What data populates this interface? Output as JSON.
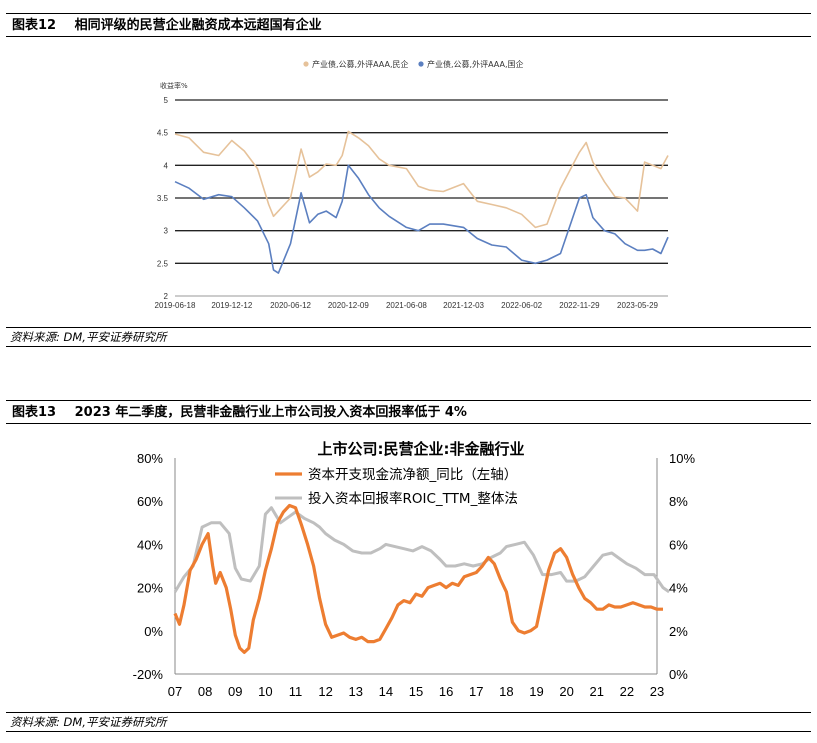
{
  "figure12": {
    "number": "图表12",
    "title": "相同评级的民营企业融资成本远超国有企业",
    "source": "资料来源: DM,平安证券研究所"
  },
  "figure13": {
    "number": "图表13",
    "title": "2023 年二季度，民营非金融行业上市公司投入资本回报率低于 4%",
    "source": "资料来源: DM,平安证券研究所"
  },
  "chart_data": [
    {
      "type": "line",
      "title": "",
      "ylabel": "收益率%",
      "ylim": [
        2,
        5
      ],
      "yticks": [
        "2",
        "2.5",
        "3",
        "3.5",
        "4",
        "4.5",
        "5"
      ],
      "x_ticklabels": [
        "2019-06-18",
        "2019-12-12",
        "2020-06-12",
        "2020-12-09",
        "2021-06-08",
        "2021-12-03",
        "2022-06-02",
        "2022-11-29",
        "2023-05-29"
      ],
      "grid": true,
      "legend_position": "top",
      "colors": {
        "private": "#e6c29a",
        "state": "#5b7fc0"
      },
      "x": [
        "2019-06-18",
        "2019-08-01",
        "2019-09-15",
        "2019-11-01",
        "2019-12-12",
        "2020-01-20",
        "2020-03-01",
        "2020-04-05",
        "2020-04-20",
        "2020-05-05",
        "2020-06-12",
        "2020-07-15",
        "2020-08-10",
        "2020-09-05",
        "2020-10-01",
        "2020-11-01",
        "2020-11-20",
        "2020-12-09",
        "2021-01-10",
        "2021-02-10",
        "2021-03-15",
        "2021-04-15",
        "2021-06-08",
        "2021-07-15",
        "2021-08-20",
        "2021-10-01",
        "2021-12-03",
        "2022-01-15",
        "2022-03-01",
        "2022-04-15",
        "2022-06-02",
        "2022-07-15",
        "2022-08-20",
        "2022-10-01",
        "2022-11-29",
        "2022-12-20",
        "2023-01-10",
        "2023-02-15",
        "2023-03-20",
        "2023-04-20",
        "2023-05-29",
        "2023-06-20",
        "2023-07-15",
        "2023-08-10",
        "2023-09-01"
      ],
      "series": [
        {
          "name": "产业债,公募,外评AAA,民企",
          "values": [
            4.48,
            4.42,
            4.2,
            4.15,
            4.38,
            4.22,
            3.95,
            3.4,
            3.22,
            3.3,
            3.5,
            4.25,
            3.82,
            3.9,
            4.02,
            4.0,
            4.15,
            4.52,
            4.42,
            4.3,
            4.1,
            4.0,
            3.95,
            3.68,
            3.62,
            3.6,
            3.72,
            3.45,
            3.4,
            3.35,
            3.25,
            3.05,
            3.1,
            3.65,
            4.2,
            4.35,
            4.05,
            3.75,
            3.52,
            3.5,
            3.3,
            4.05,
            4.0,
            3.95,
            4.15
          ]
        },
        {
          "name": "产业债,公募,外评AAA,国企",
          "values": [
            3.75,
            3.65,
            3.48,
            3.55,
            3.52,
            3.35,
            3.15,
            2.8,
            2.4,
            2.35,
            2.8,
            3.58,
            3.12,
            3.25,
            3.3,
            3.2,
            3.45,
            4.0,
            3.8,
            3.55,
            3.35,
            3.22,
            3.05,
            3.0,
            3.1,
            3.1,
            3.05,
            2.88,
            2.78,
            2.75,
            2.55,
            2.5,
            2.55,
            2.65,
            3.5,
            3.55,
            3.2,
            3.0,
            2.95,
            2.8,
            2.7,
            2.7,
            2.72,
            2.65,
            2.9
          ]
        }
      ]
    },
    {
      "type": "line",
      "title": "上市公司:民营企业:非金融行业",
      "xlabel": "",
      "ylabel": "",
      "categories": [
        "07",
        "08",
        "09",
        "10",
        "11",
        "12",
        "13",
        "14",
        "15",
        "16",
        "17",
        "18",
        "19",
        "20",
        "21",
        "22",
        "23"
      ],
      "ylim_left": [
        -20,
        80
      ],
      "yticks_left": [
        "80%",
        "60%",
        "40%",
        "20%",
        "0%",
        "-20%"
      ],
      "ylim_right": [
        0,
        10
      ],
      "yticks_right": [
        "10%",
        "8%",
        "6%",
        "4%",
        "2%",
        "0%"
      ],
      "grid": false,
      "legend_position": "top-center",
      "colors": {
        "capex": "#ed7d31",
        "roic": "#bfbfbf"
      },
      "series": [
        {
          "name": "资本开支现金流净额_同比（左轴）",
          "axis": "left",
          "x": [
            2007.0,
            2007.15,
            2007.3,
            2007.5,
            2007.7,
            2007.9,
            2008.1,
            2008.25,
            2008.35,
            2008.5,
            2008.7,
            2008.85,
            2009.0,
            2009.15,
            2009.3,
            2009.45,
            2009.6,
            2009.8,
            2010.0,
            2010.2,
            2010.4,
            2010.6,
            2010.8,
            2011.0,
            2011.2,
            2011.4,
            2011.6,
            2011.8,
            2012.0,
            2012.2,
            2012.4,
            2012.6,
            2012.8,
            2013.0,
            2013.2,
            2013.4,
            2013.6,
            2013.8,
            2014.0,
            2014.2,
            2014.4,
            2014.6,
            2014.8,
            2015.0,
            2015.2,
            2015.4,
            2015.6,
            2015.8,
            2016.0,
            2016.2,
            2016.4,
            2016.6,
            2016.8,
            2017.0,
            2017.2,
            2017.4,
            2017.6,
            2017.8,
            2018.0,
            2018.2,
            2018.4,
            2018.6,
            2018.8,
            2019.0,
            2019.2,
            2019.4,
            2019.6,
            2019.8,
            2020.0,
            2020.2,
            2020.4,
            2020.6,
            2020.8,
            2021.0,
            2021.2,
            2021.4,
            2021.6,
            2021.8,
            2022.0,
            2022.2,
            2022.4,
            2022.6,
            2022.8,
            2023.0,
            2023.2
          ],
          "values": [
            8,
            3,
            12,
            28,
            33,
            40,
            45,
            30,
            22,
            27,
            20,
            10,
            -2,
            -8,
            -10,
            -8,
            5,
            15,
            28,
            38,
            50,
            55,
            58,
            57,
            49,
            40,
            30,
            15,
            3,
            -3,
            -2,
            -1,
            -3,
            -4,
            -3,
            -5,
            -5,
            -4,
            1,
            6,
            12,
            14,
            13,
            17,
            16,
            20,
            21,
            22,
            20,
            22,
            21,
            25,
            26,
            27,
            30,
            34,
            31,
            24,
            18,
            4,
            0,
            -1,
            0,
            2,
            15,
            28,
            36,
            38,
            34,
            26,
            20,
            15,
            13,
            10,
            10,
            12,
            11,
            11,
            12,
            13,
            12,
            11,
            11,
            10,
            10
          ]
        },
        {
          "name": "投入资本回报率ROIC_TTM_整体法",
          "axis": "right",
          "x": [
            2007.0,
            2007.3,
            2007.6,
            2007.9,
            2008.2,
            2008.5,
            2008.8,
            2009.0,
            2009.2,
            2009.5,
            2009.8,
            2010.0,
            2010.2,
            2010.5,
            2010.8,
            2011.0,
            2011.3,
            2011.6,
            2011.8,
            2012.0,
            2012.3,
            2012.6,
            2012.9,
            2013.2,
            2013.5,
            2013.8,
            2014.0,
            2014.3,
            2014.6,
            2014.9,
            2015.2,
            2015.5,
            2015.8,
            2016.0,
            2016.3,
            2016.6,
            2016.9,
            2017.2,
            2017.5,
            2017.8,
            2018.0,
            2018.3,
            2018.6,
            2018.9,
            2019.2,
            2019.5,
            2019.8,
            2020.0,
            2020.3,
            2020.6,
            2020.9,
            2021.2,
            2021.5,
            2021.8,
            2022.0,
            2022.3,
            2022.6,
            2022.9,
            2023.2,
            2023.4
          ],
          "values": [
            3.8,
            4.5,
            5.0,
            6.8,
            7.0,
            7.0,
            6.5,
            4.9,
            4.4,
            4.3,
            5.0,
            7.4,
            7.7,
            7.0,
            7.3,
            7.5,
            7.2,
            7.0,
            6.8,
            6.5,
            6.2,
            6.0,
            5.7,
            5.6,
            5.6,
            5.8,
            6.0,
            5.9,
            5.8,
            5.7,
            5.9,
            5.7,
            5.3,
            5.0,
            5.0,
            5.1,
            5.0,
            5.1,
            5.4,
            5.6,
            5.9,
            6.0,
            6.1,
            5.5,
            4.6,
            4.6,
            4.7,
            4.3,
            4.3,
            4.5,
            5.0,
            5.5,
            5.6,
            5.3,
            5.1,
            4.9,
            4.6,
            4.6,
            4.0,
            3.8
          ]
        }
      ]
    }
  ]
}
